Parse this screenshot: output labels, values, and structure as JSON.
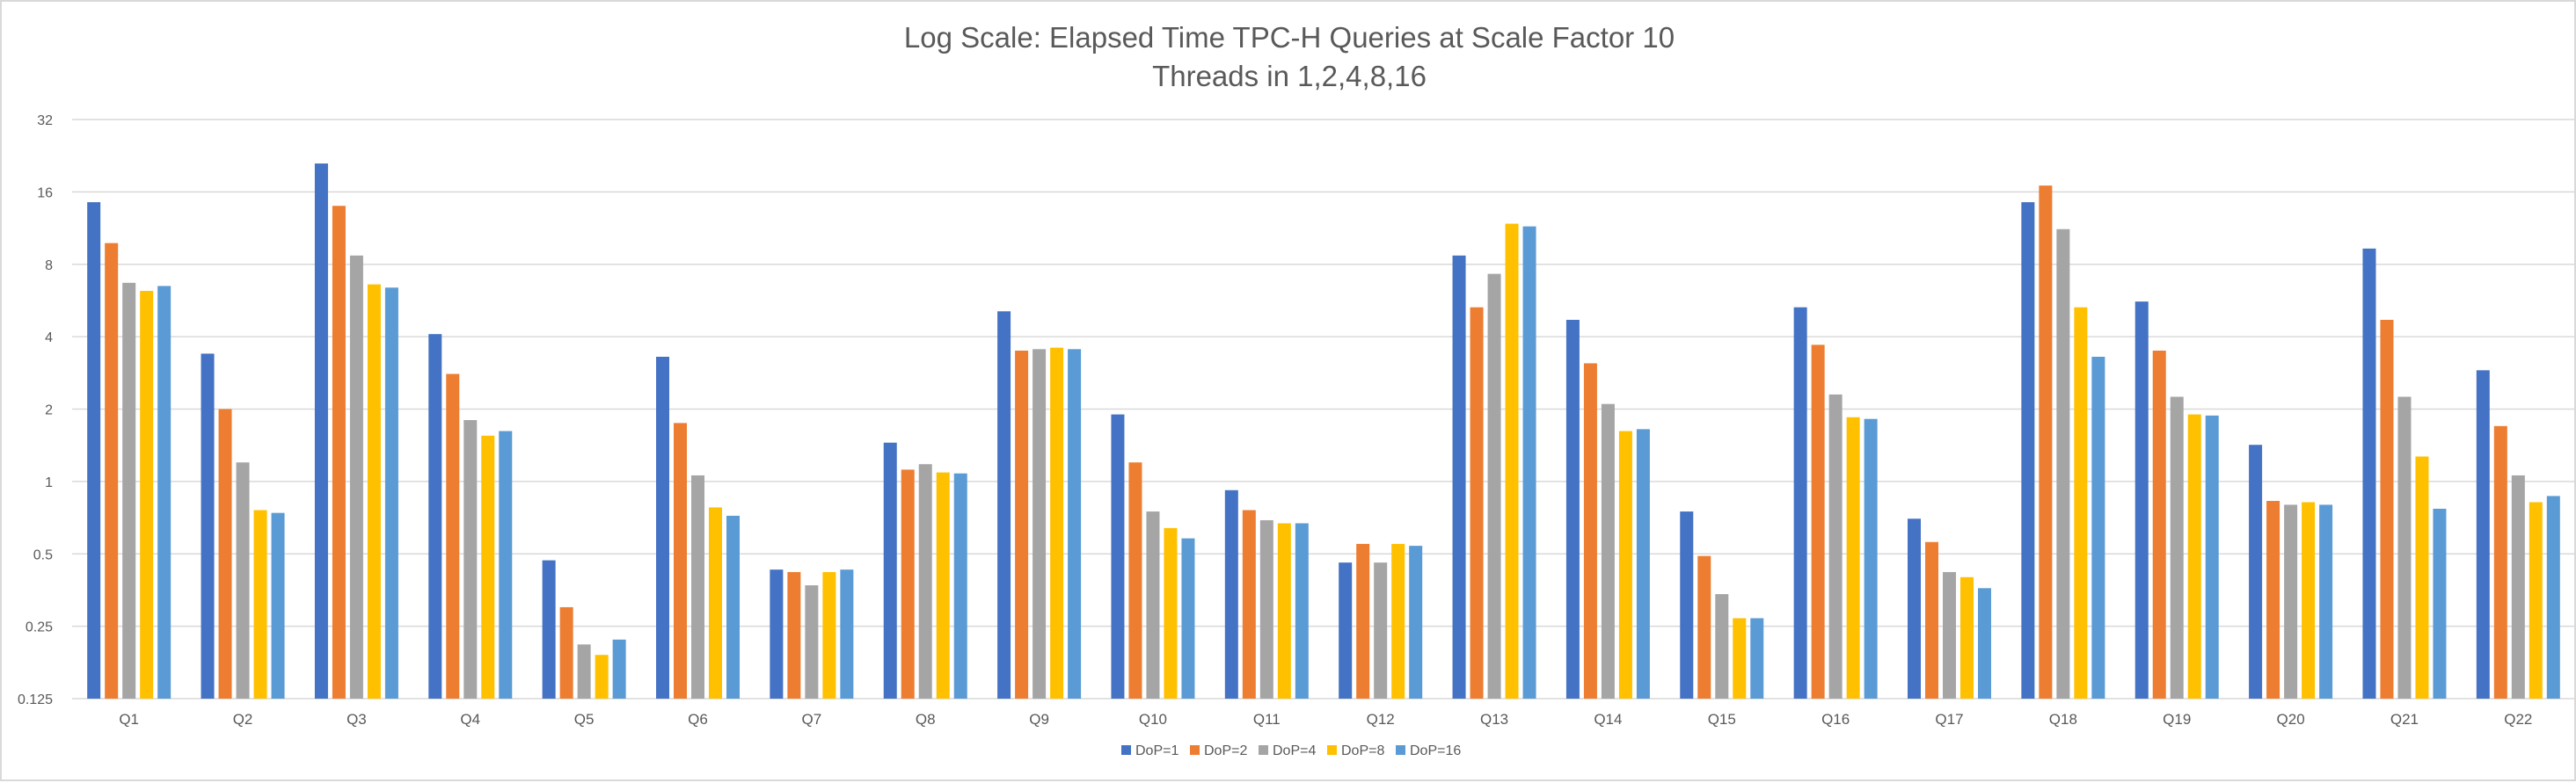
{
  "chart_data": {
    "type": "bar",
    "title": "Log  Scale:  Elapsed Time TPC-H Queries at Scale Factor 10",
    "subtitle": "Threads in 1,2,4,8,16",
    "xlabel": "",
    "ylabel": "",
    "yscale": "log2",
    "ylim": [
      0.125,
      32
    ],
    "yticks": [
      0.125,
      0.25,
      0.5,
      1,
      2,
      4,
      8,
      16,
      32
    ],
    "ytick_labels": [
      "0.125",
      "0.25",
      "0.5",
      "1",
      "2",
      "4",
      "8",
      "16",
      "32"
    ],
    "grid": true,
    "legend_position": "bottom",
    "categories": [
      "Q1",
      "Q2",
      "Q3",
      "Q4",
      "Q5",
      "Q6",
      "Q7",
      "Q8",
      "Q9",
      "Q10",
      "Q11",
      "Q12",
      "Q13",
      "Q14",
      "Q15",
      "Q16",
      "Q17",
      "Q18",
      "Q19",
      "Q20",
      "Q21",
      "Q22"
    ],
    "series": [
      {
        "name": "DoP=1",
        "color": "#4472c4",
        "values": [
          14.5,
          3.4,
          21,
          4.1,
          0.47,
          3.3,
          0.43,
          1.45,
          5.1,
          1.9,
          0.92,
          0.46,
          8.7,
          4.7,
          0.75,
          5.3,
          0.7,
          14.5,
          5.6,
          1.42,
          9.3,
          2.9
        ]
      },
      {
        "name": "DoP=2",
        "color": "#ed7d31",
        "values": [
          9.8,
          2.0,
          14,
          2.8,
          0.3,
          1.75,
          0.42,
          1.12,
          3.5,
          1.2,
          0.76,
          0.55,
          5.3,
          3.1,
          0.49,
          3.7,
          0.56,
          17,
          3.5,
          0.83,
          4.7,
          1.7
        ]
      },
      {
        "name": "DoP=4",
        "color": "#a5a5a5",
        "values": [
          6.7,
          1.2,
          8.7,
          1.8,
          0.21,
          1.06,
          0.37,
          1.18,
          3.55,
          0.75,
          0.69,
          0.46,
          7.3,
          2.1,
          0.34,
          2.3,
          0.42,
          11.2,
          2.25,
          0.8,
          2.25,
          1.06
        ]
      },
      {
        "name": "DoP=8",
        "color": "#ffc000",
        "values": [
          6.2,
          0.76,
          6.6,
          1.55,
          0.19,
          0.78,
          0.42,
          1.09,
          3.6,
          0.64,
          0.67,
          0.55,
          11.8,
          1.62,
          0.27,
          1.85,
          0.4,
          5.3,
          1.9,
          0.82,
          1.27,
          0.82
        ]
      },
      {
        "name": "DoP=16",
        "color": "#5b9bd5",
        "values": [
          6.5,
          0.74,
          6.4,
          1.62,
          0.22,
          0.72,
          0.43,
          1.08,
          3.55,
          0.58,
          0.67,
          0.54,
          11.5,
          1.65,
          0.27,
          1.82,
          0.36,
          3.3,
          1.88,
          0.8,
          0.77,
          0.87
        ]
      }
    ]
  }
}
